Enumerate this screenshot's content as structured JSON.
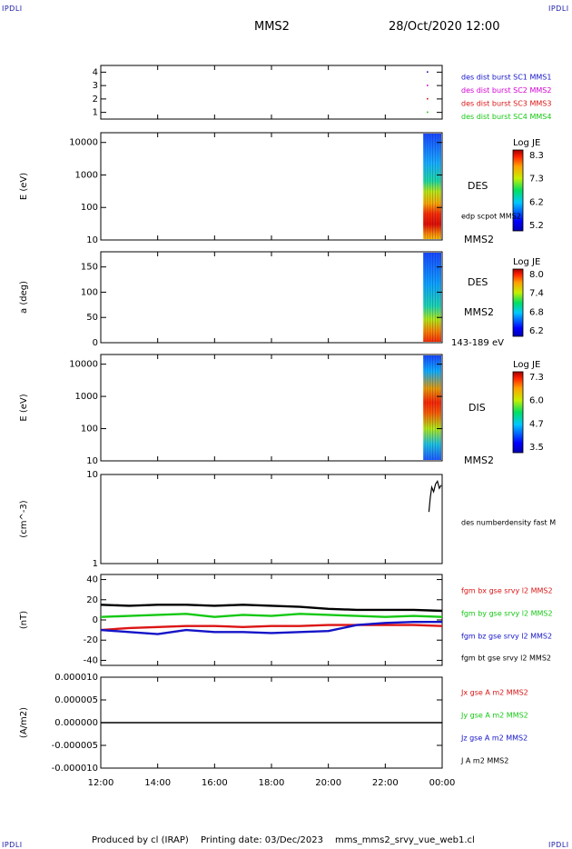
{
  "corners": {
    "tl": "IPDLI",
    "tr": "IPDLI",
    "bl": "IPDLI",
    "br": "IPDLI"
  },
  "header": {
    "spacecraft": "MMS2",
    "datetime": "28/Oct/2020 12:00"
  },
  "footer": {
    "producer": "Produced by cl (IRAP)",
    "printing_date": "Printing date: 03/Dec/2023",
    "filename": "mms_mms2_srvy_vue_web1.cl"
  },
  "colors": {
    "blue": "#1414c8",
    "magenta": "#d400d4",
    "red": "#dc1414",
    "green": "#14c814",
    "black": "#000000"
  },
  "chart_data": [
    {
      "type": "scatter",
      "ylim": [
        0.5,
        4.5
      ],
      "yticks": [
        "1",
        "2",
        "3",
        "4"
      ],
      "series": [
        {
          "name": "des dist burst SC1 MMS1",
          "color": "#1414c8",
          "y": 4
        },
        {
          "name": "des dist burst SC2 MMS2",
          "color": "#d400d4",
          "y": 3
        },
        {
          "name": "des dist burst SC3 MMS3",
          "color": "#dc1414",
          "y": 2
        },
        {
          "name": "des dist burst SC4 MMS4",
          "color": "#14c814",
          "y": 1
        }
      ]
    },
    {
      "type": "heatmap",
      "ylabel": "E (eV)",
      "yscale": "log",
      "yticks": [
        "10",
        "100",
        "1000",
        "10000"
      ],
      "labels": [
        "DES",
        "edp scpot MMS2",
        "MMS2"
      ],
      "colorbar": {
        "title": "Log JE",
        "ticks": [
          "8.3",
          "7.3",
          "6.2",
          "5.2"
        ]
      }
    },
    {
      "type": "heatmap",
      "ylabel": "a (deg)",
      "ylim": [
        0,
        180
      ],
      "yticks": [
        "0",
        "50",
        "100",
        "150"
      ],
      "labels": [
        "DES",
        "MMS2",
        "143-189 eV"
      ],
      "colorbar": {
        "title": "Log JE",
        "ticks": [
          "8.0",
          "7.4",
          "6.8",
          "6.2"
        ]
      }
    },
    {
      "type": "heatmap",
      "ylabel": "E (eV)",
      "yscale": "log",
      "yticks": [
        "10",
        "100",
        "1000",
        "10000"
      ],
      "labels": [
        "DIS",
        "MMS2"
      ],
      "colorbar": {
        "title": "Log JE",
        "ticks": [
          "7.3",
          "6.0",
          "4.7",
          "3.5"
        ]
      }
    },
    {
      "type": "line",
      "ylabel": "(cm^-3)",
      "yscale": "log",
      "yticks": [
        "1",
        "10"
      ],
      "series": [
        {
          "name": "des numberdensity fast M",
          "color": "#000000",
          "x": [
            "23:32",
            "23:35",
            "23:38",
            "23:42",
            "23:46",
            "23:50",
            "23:54",
            "23:58"
          ],
          "y": [
            3.8,
            5.5,
            7.2,
            6.4,
            7.8,
            8.4,
            7.0,
            7.6
          ]
        }
      ]
    },
    {
      "type": "line",
      "ylabel": "(nT)",
      "ylim": [
        -45,
        45
      ],
      "yticks": [
        "40",
        "20",
        "0",
        "-20",
        "-40"
      ],
      "series": [
        {
          "name": "fgm bx gse srvy l2 MMS2",
          "color": "#dc1414",
          "x": [
            "12:00",
            "13:00",
            "14:00",
            "15:00",
            "16:00",
            "17:00",
            "18:00",
            "19:00",
            "20:00",
            "21:00",
            "22:00",
            "23:00",
            "00:00"
          ],
          "y": [
            -10,
            -8,
            -7,
            -6,
            -6,
            -7,
            -6,
            -6,
            -5,
            -5,
            -5,
            -5,
            -6
          ]
        },
        {
          "name": "fgm by gse srvy l2 MMS2",
          "color": "#14c814",
          "x": [
            "12:00",
            "13:00",
            "14:00",
            "15:00",
            "16:00",
            "17:00",
            "18:00",
            "19:00",
            "20:00",
            "21:00",
            "22:00",
            "23:00",
            "00:00"
          ],
          "y": [
            3,
            4,
            5,
            6,
            3,
            5,
            4,
            6,
            5,
            4,
            3,
            4,
            3
          ]
        },
        {
          "name": "fgm bz gse srvy l2 MMS2",
          "color": "#1414c8",
          "x": [
            "12:00",
            "13:00",
            "14:00",
            "15:00",
            "16:00",
            "17:00",
            "18:00",
            "19:00",
            "20:00",
            "21:00",
            "22:00",
            "23:00",
            "00:00"
          ],
          "y": [
            -10,
            -12,
            -14,
            -10,
            -12,
            -12,
            -13,
            -12,
            -11,
            -5,
            -3,
            -2,
            -2
          ]
        },
        {
          "name": "fgm bt gse srvy l2 MMS2",
          "color": "#000000",
          "x": [
            "12:00",
            "13:00",
            "14:00",
            "15:00",
            "16:00",
            "17:00",
            "18:00",
            "19:00",
            "20:00",
            "21:00",
            "22:00",
            "23:00",
            "00:00"
          ],
          "y": [
            15,
            14,
            15,
            15,
            14,
            15,
            14,
            13,
            11,
            10,
            10,
            10,
            9
          ]
        }
      ]
    },
    {
      "type": "line",
      "ylabel": "(A/m2)",
      "ylim": [
        -1e-05,
        1e-05
      ],
      "yticks": [
        "0.000010",
        "0.000005",
        "0.000000",
        "-0.000005",
        "-0.000010"
      ],
      "xticks": [
        "12:00",
        "14:00",
        "16:00",
        "18:00",
        "20:00",
        "22:00",
        "00:00"
      ],
      "series": [
        {
          "name": "Jx gse A m2 MMS2",
          "color": "#dc1414"
        },
        {
          "name": "Jy gse A m2 MMS2",
          "color": "#14c814"
        },
        {
          "name": "Jz gse A m2 MMS2",
          "color": "#1414c8"
        },
        {
          "name": "J A m2 MMS2",
          "color": "#000000",
          "x": [
            "12:00",
            "00:00"
          ],
          "y": [
            0,
            0
          ]
        }
      ]
    }
  ]
}
